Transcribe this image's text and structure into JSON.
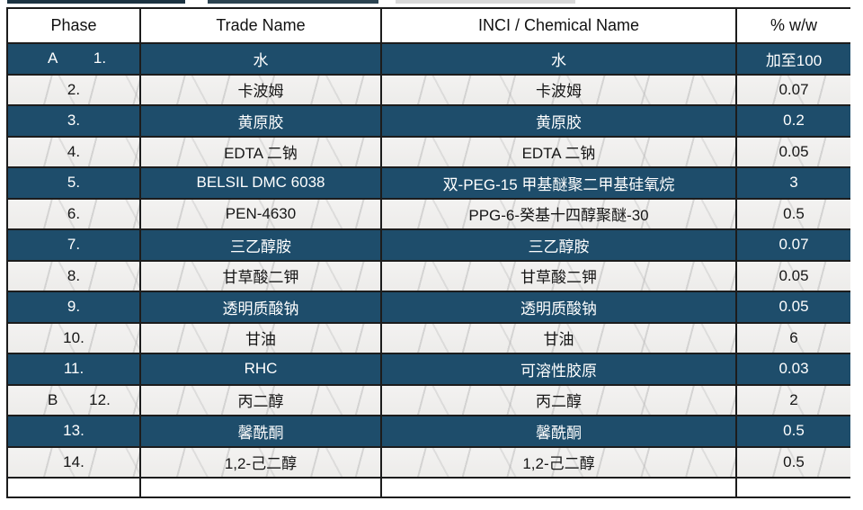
{
  "table": {
    "columns": [
      "Phase",
      "Trade Name",
      "INCI / Chemical Name",
      "% w/w"
    ],
    "rows": [
      {
        "phase": "A",
        "num": "1.",
        "trade": "水",
        "inci": "水",
        "pct": "加至100",
        "variant": "dark"
      },
      {
        "phase": "",
        "num": "2.",
        "trade": "卡波姆",
        "inci": "卡波姆",
        "pct": "0.07",
        "variant": "light"
      },
      {
        "phase": "",
        "num": "3.",
        "trade": "黄原胶",
        "inci": "黄原胶",
        "pct": "0.2",
        "variant": "dark"
      },
      {
        "phase": "",
        "num": "4.",
        "trade": "EDTA 二钠",
        "inci": "EDTA 二钠",
        "pct": "0.05",
        "variant": "light"
      },
      {
        "phase": "",
        "num": "5.",
        "trade": "BELSIL DMC 6038",
        "inci": "双-PEG-15 甲基醚聚二甲基硅氧烷",
        "pct": "3",
        "variant": "dark"
      },
      {
        "phase": "",
        "num": "6.",
        "trade": "PEN-4630",
        "inci": "PPG-6-癸基十四醇聚醚-30",
        "pct": "0.5",
        "variant": "light"
      },
      {
        "phase": "",
        "num": "7.",
        "trade": "三乙醇胺",
        "inci": "三乙醇胺",
        "pct": "0.07",
        "variant": "dark"
      },
      {
        "phase": "",
        "num": "8.",
        "trade": "甘草酸二钾",
        "inci": "甘草酸二钾",
        "pct": "0.05",
        "variant": "light"
      },
      {
        "phase": "",
        "num": "9.",
        "trade": "透明质酸钠",
        "inci": "透明质酸钠",
        "pct": "0.05",
        "variant": "dark"
      },
      {
        "phase": "",
        "num": "10.",
        "trade": "甘油",
        "inci": "甘油",
        "pct": "6",
        "variant": "light"
      },
      {
        "phase": "",
        "num": "11.",
        "trade": "RHC",
        "inci": "可溶性胶原",
        "pct": "0.03",
        "variant": "dark"
      },
      {
        "phase": "B",
        "num": "12.",
        "trade": "丙二醇",
        "inci": "丙二醇",
        "pct": "2",
        "variant": "light"
      },
      {
        "phase": "",
        "num": "13.",
        "trade": "馨酰酮",
        "inci": "馨酰酮",
        "pct": "0.5",
        "variant": "dark"
      },
      {
        "phase": "",
        "num": "14.",
        "trade": "1,2-己二醇",
        "inci": "1,2-己二醇",
        "pct": "0.5",
        "variant": "light"
      }
    ]
  },
  "colors": {
    "dark_row": "#1e4d6b",
    "light_row": "#f1f0ee",
    "border": "#1c1c1c",
    "dark_row_text": "#ffffff",
    "light_row_text": "#161616"
  }
}
